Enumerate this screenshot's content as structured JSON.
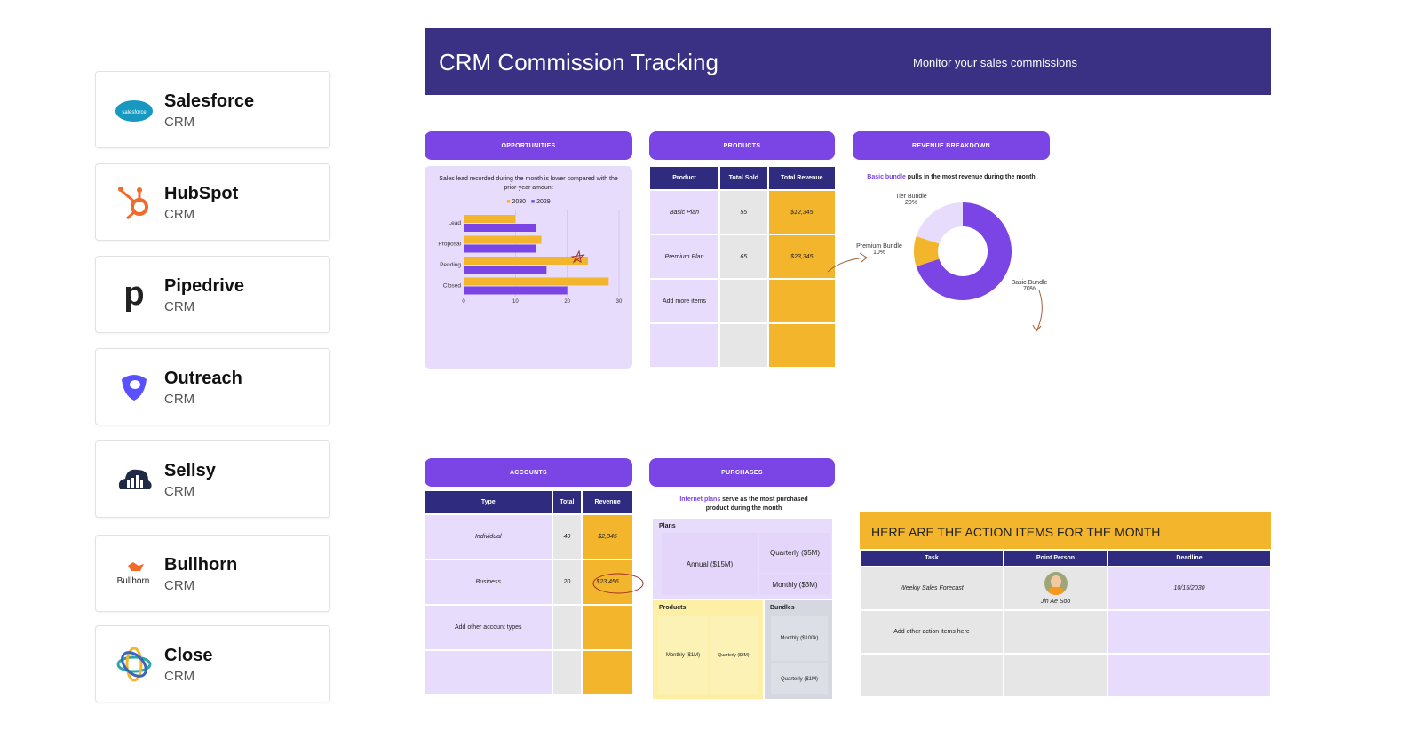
{
  "crm_list": [
    {
      "name": "Salesforce",
      "sub": "CRM",
      "icon": "salesforce-cloud-icon",
      "logo_text": "salesforce",
      "color": "#1798c1"
    },
    {
      "name": "HubSpot",
      "sub": "CRM",
      "icon": "hubspot-sprocket-icon",
      "color": "#f26a2a"
    },
    {
      "name": "Pipedrive",
      "sub": "CRM",
      "icon": "pipedrive-p-icon",
      "color": "#222222"
    },
    {
      "name": "Outreach",
      "sub": "CRM",
      "icon": "outreach-shield-icon",
      "color": "#5951ff"
    },
    {
      "name": "Sellsy",
      "sub": "CRM",
      "icon": "sellsy-cloud-icon",
      "color": "#1f2a44"
    },
    {
      "name": "Bullhorn",
      "sub": "CRM",
      "icon": "bullhorn-bull-icon",
      "logo_text": "Bullhorn",
      "color": "#f26a2a"
    },
    {
      "name": "Close",
      "sub": "CRM",
      "icon": "close-rings-icon",
      "color": "#2aa8a0"
    }
  ],
  "header": {
    "title": "CRM Commission Tracking",
    "subtitle": "Monitor your sales commissions",
    "color": "#3a3185"
  },
  "opportunities": {
    "label": "OPPORTUNITIES",
    "note": "Sales lead recorded during the month is lower compared with the prior-year amount"
  },
  "chart_data": {
    "type": "bar",
    "orientation": "horizontal",
    "categories": [
      "Lead",
      "Proposal",
      "Pending",
      "Closed"
    ],
    "series": [
      {
        "name": "2030",
        "color": "#f3b52b",
        "values": [
          10,
          15,
          24,
          28
        ]
      },
      {
        "name": "2029",
        "color": "#7b45e6",
        "values": [
          14,
          14,
          16,
          20
        ]
      }
    ],
    "xlim": [
      0,
      30
    ],
    "xticks": [
      "0",
      "10",
      "20",
      "30"
    ],
    "legend": "top",
    "grid": true
  },
  "products": {
    "label": "PRODUCTS",
    "headers": [
      "Product",
      "Total Sold",
      "Total Revenue"
    ],
    "rows": [
      [
        "Basic Plan",
        "55",
        "$12,345"
      ],
      [
        "Premium Plan",
        "65",
        "$23,345"
      ],
      [
        "Add more items",
        "",
        ""
      ],
      [
        "",
        "",
        ""
      ]
    ]
  },
  "revenue": {
    "label": "REVENUE BREAKDOWN",
    "note_highlight": "Basic bundle",
    "note_rest": " pulls in the most revenue during the month",
    "slices": [
      {
        "name": "Basic Bundle",
        "pct": "70%",
        "value": 70,
        "color": "#7b45e6"
      },
      {
        "name": "Premium Bundle",
        "pct": "10%",
        "value": 10,
        "color": "#f3b52b"
      },
      {
        "name": "Tier Bundle",
        "pct": "20%",
        "value": 20,
        "color": "#e8dcfc"
      }
    ]
  },
  "accounts": {
    "label": "ACCOUNTS",
    "headers": [
      "Type",
      "Total",
      "Revenue"
    ],
    "rows": [
      [
        "Individual",
        "40",
        "$2,345"
      ],
      [
        "Business",
        "20",
        "$23,456"
      ],
      [
        "Add other account types",
        "",
        ""
      ],
      [
        "",
        "",
        ""
      ]
    ]
  },
  "purchases": {
    "label": "PURCHASES",
    "note_highlight": "Internet plans",
    "note_rest": " serve as the most purchased product during the month",
    "plans": {
      "title": "Plans",
      "items": [
        "Annual ($15M)",
        "Quarterly ($5M)",
        "Monthly ($3M)"
      ]
    },
    "products": {
      "title": "Products",
      "items": [
        "Monthly ($1M)",
        "Quarterly ($3M)"
      ]
    },
    "bundles": {
      "title": "Bundles",
      "items": [
        "Monthly ($100k)",
        "Quarterly ($1M)"
      ]
    }
  },
  "actions": {
    "title": "HERE ARE THE ACTION ITEMS FOR THE MONTH",
    "headers": [
      "Task",
      "Point Person",
      "Deadline"
    ],
    "rows": [
      [
        "Weekly Sales Forecast",
        "Jin Ae Soo",
        "10/15/2030"
      ],
      [
        "Add other action items here",
        "",
        ""
      ],
      [
        "",
        "",
        ""
      ]
    ]
  }
}
